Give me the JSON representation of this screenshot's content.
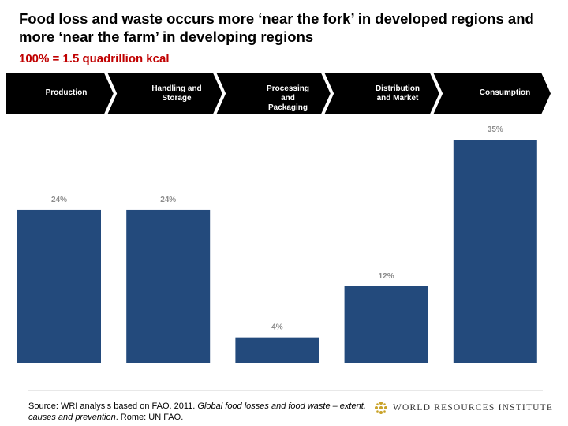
{
  "chart_data": {
    "type": "bar",
    "title": "Food loss and waste occurs more ‘near the fork’ in developed regions and more ‘near the farm’ in developing regions",
    "subtitle": "100% = 1.5 quadrillion kcal",
    "categories": [
      "Production",
      "Handling and Storage",
      "Processing and Packaging",
      "Distribution and Market",
      "Consumption"
    ],
    "values": [
      24,
      24,
      4,
      12,
      35
    ],
    "value_labels": [
      "24%",
      "24%",
      "4%",
      "12%",
      "35%"
    ],
    "color": "#234a7c",
    "source": {
      "text": "Source: WRI analysis based on FAO. 2011. ",
      "italic": "Global food losses and food waste – extent, causes and prevention",
      "end": ". Rome: UN FAO."
    },
    "organization": "WORLD RESOURCES INSTITUTE"
  }
}
